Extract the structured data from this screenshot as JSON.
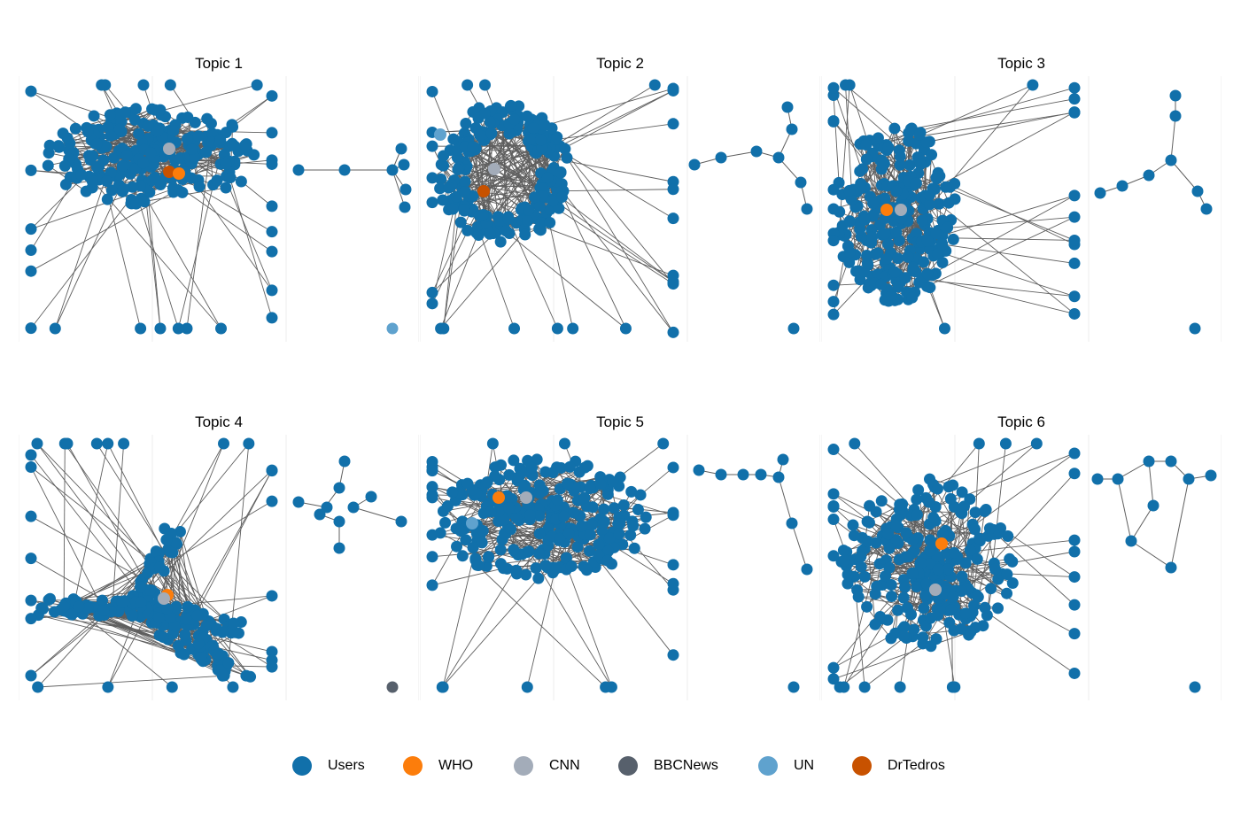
{
  "topics": [
    {
      "title": "Topic 1",
      "seed": 11,
      "style": "dense",
      "cluster_size": 230,
      "highlights_left": [
        [
          "CNN"
        ],
        [
          "DrTedros"
        ],
        [
          "WHO"
        ]
      ],
      "side_highlight": "UN"
    },
    {
      "title": "Topic 2",
      "seed": 23,
      "style": "ring",
      "cluster_size": 220,
      "highlights_left": [
        [
          "UN"
        ],
        [
          "CNN"
        ],
        [
          "DrTedros"
        ]
      ],
      "side_highlight": null
    },
    {
      "title": "Topic 3",
      "seed": 37,
      "style": "dense",
      "cluster_size": 240,
      "highlights_left": [
        [
          "WHO"
        ],
        [
          "CNN"
        ]
      ],
      "side_highlight": null
    },
    {
      "title": "Topic 4",
      "seed": 41,
      "style": "star",
      "cluster_size": 210,
      "highlights_left": [
        [
          "WHO"
        ],
        [
          "CNN"
        ]
      ],
      "side_highlight": "BBCNews"
    },
    {
      "title": "Topic 5",
      "seed": 53,
      "style": "dense",
      "cluster_size": 260,
      "highlights_left": [
        [
          "WHO"
        ],
        [
          "CNN"
        ],
        [
          "UN"
        ]
      ],
      "side_highlight": null
    },
    {
      "title": "Topic 6",
      "seed": 67,
      "style": "dense",
      "cluster_size": 240,
      "highlights_left": [
        [
          "WHO"
        ],
        [
          "CNN"
        ]
      ],
      "side_highlight": null
    }
  ],
  "legend": [
    {
      "label": "Users",
      "color": "#1170aa"
    },
    {
      "label": "WHO",
      "color": "#fc7d0b"
    },
    {
      "label": "CNN",
      "color": "#a3acb9"
    },
    {
      "label": "BBCNews",
      "color": "#57606c"
    },
    {
      "label": "UN",
      "color": "#5fa2ce"
    },
    {
      "label": "DrTedros",
      "color": "#c85200"
    }
  ],
  "edge_color": "#5f5f5f"
}
